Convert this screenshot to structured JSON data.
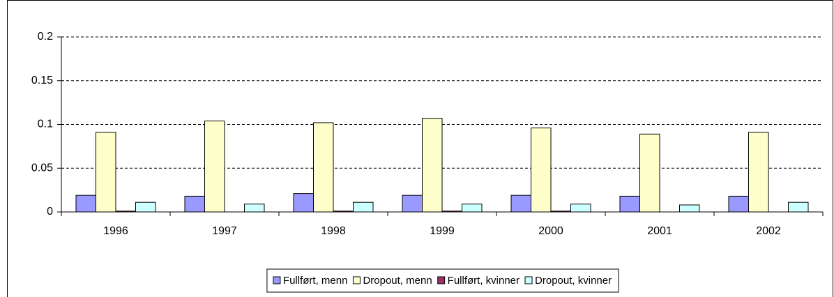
{
  "chart_data": {
    "type": "bar",
    "categories": [
      "1996",
      "1997",
      "1998",
      "1999",
      "2000",
      "2001",
      "2002"
    ],
    "series": [
      {
        "name": "Fullført, menn",
        "color": "#9999ff",
        "values": [
          0.019,
          0.018,
          0.021,
          0.019,
          0.019,
          0.018,
          0.018
        ]
      },
      {
        "name": "Dropout, menn",
        "color": "#ffffcc",
        "values": [
          0.091,
          0.104,
          0.102,
          0.107,
          0.096,
          0.089,
          0.091
        ]
      },
      {
        "name": "Fullført, kvinner",
        "color": "#993366",
        "values": [
          0.001,
          0,
          0.001,
          0.001,
          0.001,
          0,
          0
        ]
      },
      {
        "name": "Dropout, kvinner",
        "color": "#ccffff",
        "values": [
          0.011,
          0.009,
          0.011,
          0.009,
          0.009,
          0.008,
          0.011
        ]
      }
    ],
    "ylim": [
      0,
      0.2
    ],
    "yticks": [
      0,
      0.05,
      0.1,
      0.15,
      0.2
    ],
    "grid": true,
    "legend": "bottom"
  }
}
